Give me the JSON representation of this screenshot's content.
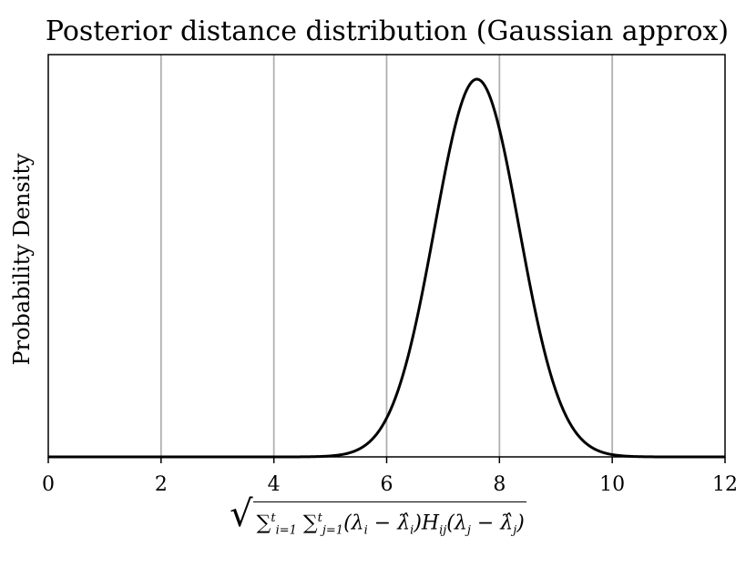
{
  "chart_data": {
    "type": "line",
    "title": "Posterior distance distribution (Gaussian approx)",
    "ylabel": "Probability Density",
    "xlabel": {
      "sum1_sub": "i=1",
      "sum1_sup": "t",
      "sum2_sub": "j=1",
      "sum2_sup": "t",
      "term_a": "(λ",
      "sub_i": "i",
      "minus1": " − ",
      "lambda_hat": "λ̂",
      "sub_i2": "i",
      "term_b": ")H",
      "sub_ij": "ij",
      "term_c": "(λ",
      "sub_j": "j",
      "minus2": " − ",
      "lambda_hat2": "λ̂",
      "sub_j2": "j",
      "term_d": ")"
    },
    "xlim": [
      0,
      12
    ],
    "ylim": [
      0,
      1.065
    ],
    "xticks": [
      "0",
      "2",
      "4",
      "6",
      "8",
      "10",
      "12"
    ],
    "yticks_shown": false,
    "grid": "x-major",
    "series": [
      {
        "distribution": "gaussian",
        "mean": 7.6,
        "std": 0.75,
        "peak_normalized": 1.0,
        "color": "#000000"
      }
    ]
  }
}
